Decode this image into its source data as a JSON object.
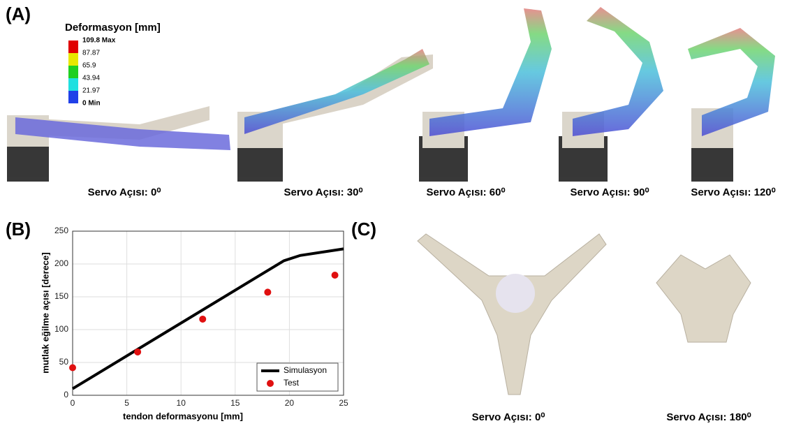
{
  "panels": {
    "a": "(A)",
    "b": "(B)",
    "c": "(C)"
  },
  "colorbar": {
    "title": "Deformasyon [mm]",
    "labels": [
      "109.8 Max",
      "87.87",
      "65.9",
      "43.94",
      "21.97",
      "0 Min"
    ]
  },
  "captions_a": [
    "Servo Açısı: 0⁰",
    "Servo Açısı: 30⁰",
    "Servo Açısı: 60⁰",
    "Servo Açısı: 90⁰",
    "Servo Açısı: 120⁰"
  ],
  "captions_c": [
    "Servo Açısı: 0⁰",
    "Servo Açısı: 180⁰"
  ],
  "chart_data": {
    "type": "line",
    "xlabel": "tendon deformasyonu [mm]",
    "ylabel": "mutlak eğilme açısı [derece]",
    "xlim": [
      0,
      25
    ],
    "xticks": [
      0,
      5,
      10,
      15,
      20,
      25
    ],
    "ylim": [
      0,
      250
    ],
    "yticks": [
      0,
      50,
      100,
      150,
      200,
      250
    ],
    "grid": true,
    "legend": "lower right",
    "series": [
      {
        "name": "Simulasyon",
        "type": "line",
        "color": "#000000",
        "x": [
          0,
          19.5,
          21,
          25
        ],
        "values": [
          10,
          205,
          213,
          223
        ]
      },
      {
        "name": "Test",
        "type": "scatter",
        "color": "#e01010",
        "x": [
          0,
          6,
          12,
          18,
          24.2
        ],
        "values": [
          42,
          66,
          116,
          157,
          183
        ]
      }
    ]
  }
}
